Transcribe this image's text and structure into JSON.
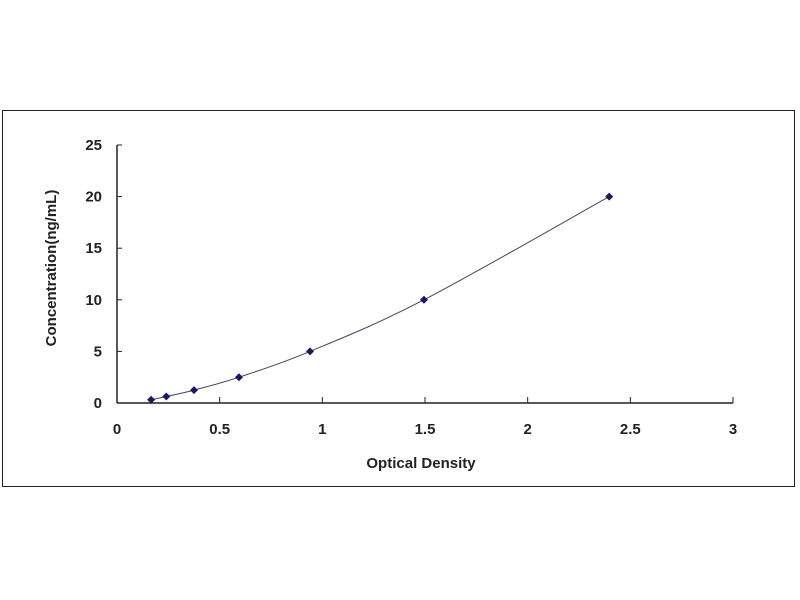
{
  "chart_data": {
    "type": "scatter",
    "title": "",
    "xlabel": "Optical Density",
    "ylabel": "Concentration(ng/mL)",
    "xlim": [
      0,
      3
    ],
    "ylim": [
      0,
      25
    ],
    "xticks": [
      "0",
      "0.5",
      "1",
      "1.5",
      "2",
      "2.5",
      "3"
    ],
    "yticks": [
      "0",
      "5",
      "10",
      "15",
      "20",
      "25"
    ],
    "grid": false,
    "legend": "none",
    "trendline": "smooth curve through points",
    "x": [
      0.166,
      0.24,
      0.375,
      0.594,
      0.94,
      1.495,
      2.397
    ],
    "y": [
      0.312,
      0.625,
      1.25,
      2.5,
      5,
      10,
      20
    ],
    "colors": {
      "marker": "#1a1a5e",
      "line": "#444466",
      "axis": "#222222"
    }
  }
}
